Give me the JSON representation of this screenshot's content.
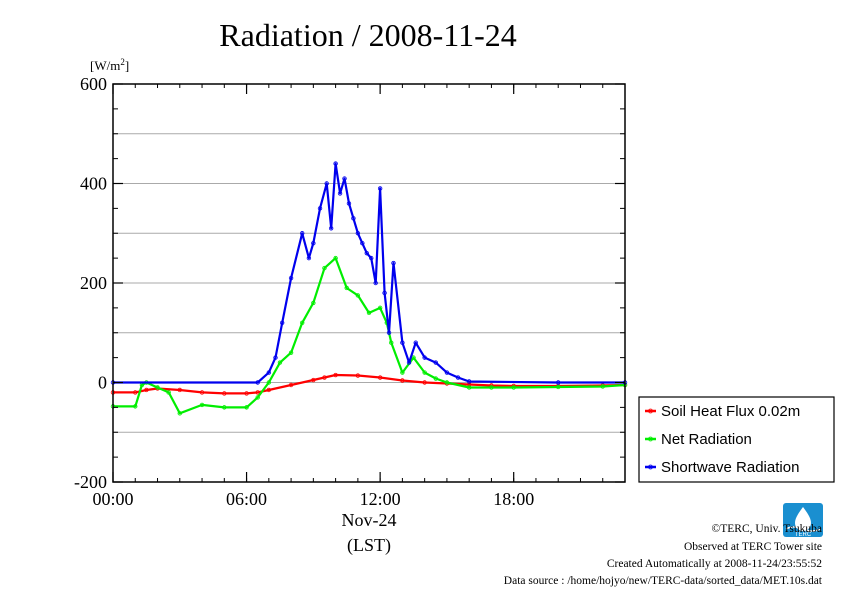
{
  "chart_data": {
    "type": "line",
    "title": "Radiation / 2008-11-24",
    "ylabel": "[W/m²]",
    "ylabel_base": "[W/m",
    "ylabel_sup": "2",
    "ylabel_close": "]",
    "xlabel_date": "Nov-24",
    "xlabel_unit": "(LST)",
    "xlim": [
      0,
      23
    ],
    "ylim": [
      -200,
      600
    ],
    "y_ticks": [
      -200,
      0,
      200,
      400,
      600
    ],
    "y_tick_labels": [
      "-200",
      "0",
      "200",
      "400",
      "600"
    ],
    "x_ticks": [
      0,
      6,
      12,
      18
    ],
    "x_tick_labels": [
      "00:00",
      "06:00",
      "12:00",
      "18:00"
    ],
    "grid": true,
    "legend_position": "right",
    "series": [
      {
        "name": "Soil Heat Flux 0.02m",
        "color": "#ff0000",
        "x": [
          0,
          1,
          1.5,
          2,
          3,
          4,
          5,
          6,
          6.5,
          7,
          8,
          9,
          9.5,
          10,
          11,
          12,
          13,
          14,
          15,
          16,
          17,
          18,
          20,
          22,
          23
        ],
        "values": [
          -20,
          -20,
          -15,
          -12,
          -15,
          -20,
          -22,
          -22,
          -20,
          -15,
          -5,
          5,
          10,
          15,
          14,
          10,
          4,
          0,
          -2,
          -4,
          -6,
          -7,
          -7,
          -6,
          -5
        ]
      },
      {
        "name": "Net Radiation",
        "color": "#00ee00",
        "x": [
          0,
          1,
          1.3,
          1.5,
          2,
          2.5,
          3,
          4,
          5,
          6,
          6.5,
          7,
          7.5,
          8,
          8.5,
          9,
          9.5,
          10,
          10.5,
          11,
          11.5,
          12,
          12.3,
          12.5,
          13,
          13.5,
          14,
          14.5,
          15,
          16,
          17,
          18,
          20,
          22,
          23
        ],
        "values": [
          -48,
          -48,
          -5,
          0,
          -10,
          -20,
          -62,
          -45,
          -50,
          -50,
          -30,
          0,
          40,
          60,
          120,
          160,
          230,
          250,
          190,
          175,
          140,
          150,
          120,
          80,
          20,
          50,
          20,
          8,
          0,
          -10,
          -10,
          -10,
          -9,
          -8,
          -5
        ]
      },
      {
        "name": "Shortwave Radiation",
        "color": "#0000ee",
        "x": [
          0,
          6.5,
          7,
          7.3,
          7.6,
          8,
          8.5,
          8.8,
          9,
          9.3,
          9.6,
          9.8,
          10,
          10.2,
          10.4,
          10.6,
          10.8,
          11,
          11.2,
          11.4,
          11.6,
          11.8,
          12,
          12.2,
          12.4,
          12.6,
          13,
          13.3,
          13.6,
          14,
          14.5,
          15,
          15.5,
          16,
          20,
          23
        ],
        "values": [
          0,
          0,
          20,
          50,
          120,
          210,
          300,
          250,
          280,
          350,
          400,
          310,
          440,
          380,
          410,
          360,
          330,
          300,
          280,
          260,
          250,
          200,
          390,
          180,
          100,
          240,
          80,
          40,
          80,
          50,
          40,
          20,
          10,
          2,
          0,
          0
        ]
      }
    ]
  },
  "footer": {
    "copyright": "©TERC, Univ. Tsukuba",
    "observed": "Observed at TERC Tower site",
    "created": "Created Automatically at 2008-11-24/23:55:52",
    "source": "Data source : /home/hojyo/new/TERC-data/sorted_data/MET.10s.dat"
  },
  "logo_text": "TERC"
}
